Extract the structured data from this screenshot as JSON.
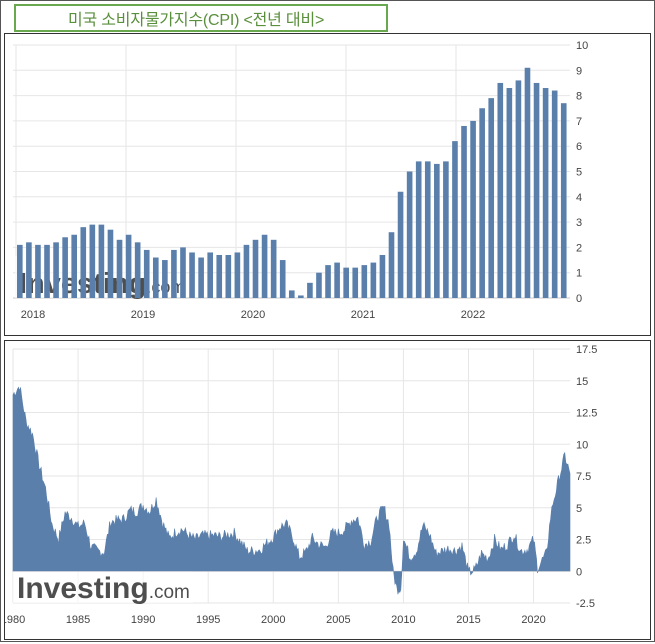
{
  "title": "미국 소비자물가지수(CPI) <전년 대비>",
  "watermark": {
    "brand": "Investing",
    "suffix": ".com"
  },
  "colors": {
    "bar": "#5b7fab",
    "grid": "#e6e6e6",
    "axis_text": "#444444",
    "title": "#5a8f3c",
    "title_border": "#6aa84f"
  },
  "chart_data": [
    {
      "type": "bar",
      "ylim": [
        0,
        10
      ],
      "y_ticks": [
        "0",
        "1",
        "2",
        "3",
        "4",
        "5",
        "6",
        "7",
        "8",
        "9",
        "10"
      ],
      "x_labels": [
        "2018",
        "2019",
        "2020",
        "2021",
        "2022"
      ],
      "grid": true,
      "series": [
        {
          "values": [
            2.1,
            2.2,
            2.1,
            2.1,
            2.2,
            2.4,
            2.5,
            2.8,
            2.9,
            2.9,
            2.7,
            2.3,
            2.5,
            2.2,
            1.9,
            1.6,
            1.5,
            1.9,
            2.0,
            1.8,
            1.6,
            1.8,
            1.7,
            1.7,
            1.8,
            2.1,
            2.3,
            2.5,
            2.3,
            1.5,
            0.3,
            0.1,
            0.6,
            1.0,
            1.3,
            1.4,
            1.2,
            1.2,
            1.3,
            1.4,
            1.7,
            2.6,
            4.2,
            5.0,
            5.4,
            5.4,
            5.3,
            5.4,
            6.2,
            6.8,
            7.0,
            7.5,
            7.9,
            8.5,
            8.3,
            8.6,
            9.1,
            8.5,
            8.3,
            8.2,
            7.7
          ]
        }
      ]
    },
    {
      "type": "area",
      "ylim": [
        -2.5,
        17.5
      ],
      "y_ticks": [
        "17.5",
        "15",
        "12.5",
        "10",
        "7.5",
        "5",
        "2.5",
        "0",
        "-2.5"
      ],
      "x_labels": [
        "1980",
        "1985",
        "1990",
        "1995",
        "2000",
        "2005",
        "2010",
        "2015",
        "2020"
      ],
      "x_range": [
        1980,
        2022.8
      ],
      "grid": true,
      "series": [
        {
          "x": [
            1980.0,
            1980.5,
            1981.0,
            1981.5,
            1982.0,
            1982.5,
            1983.0,
            1983.5,
            1984.0,
            1984.5,
            1985.0,
            1985.5,
            1986.0,
            1986.5,
            1987.0,
            1987.5,
            1988.0,
            1988.5,
            1989.0,
            1989.5,
            1990.0,
            1990.5,
            1991.0,
            1991.5,
            1992.0,
            1992.5,
            1993.0,
            1993.5,
            1994.0,
            1994.5,
            1995.0,
            1995.5,
            1996.0,
            1996.5,
            1997.0,
            1997.5,
            1998.0,
            1998.5,
            1999.0,
            1999.5,
            2000.0,
            2000.5,
            2001.0,
            2001.5,
            2002.0,
            2002.5,
            2003.0,
            2003.5,
            2004.0,
            2004.5,
            2005.0,
            2005.5,
            2006.0,
            2006.5,
            2007.0,
            2007.5,
            2008.0,
            2008.5,
            2008.9,
            2009.2,
            2009.5,
            2009.8,
            2010.0,
            2010.5,
            2011.0,
            2011.5,
            2012.0,
            2012.5,
            2013.0,
            2013.5,
            2014.0,
            2014.5,
            2015.0,
            2015.5,
            2016.0,
            2016.5,
            2017.0,
            2017.5,
            2018.0,
            2018.5,
            2019.0,
            2019.5,
            2020.0,
            2020.3,
            2020.5,
            2021.0,
            2021.3,
            2021.5,
            2022.0,
            2022.4,
            2022.8
          ],
          "y": [
            13.9,
            14.6,
            11.8,
            10.8,
            8.4,
            6.5,
            3.7,
            2.5,
            4.6,
            4.2,
            3.5,
            3.8,
            1.9,
            1.6,
            1.5,
            3.9,
            4.0,
            4.1,
            4.8,
            4.7,
            5.2,
            4.7,
            5.7,
            3.8,
            2.6,
            3.1,
            3.3,
            2.8,
            2.5,
            2.8,
            2.8,
            2.8,
            2.7,
            2.9,
            3.0,
            2.3,
            1.6,
            1.6,
            1.7,
            2.2,
            2.7,
            3.5,
            3.7,
            2.7,
            1.1,
            1.5,
            2.6,
            2.1,
            1.9,
            3.0,
            3.0,
            3.3,
            4.0,
            4.2,
            2.1,
            2.4,
            4.3,
            5.0,
            3.7,
            0.0,
            -1.4,
            -1.3,
            2.6,
            1.1,
            1.6,
            3.6,
            2.9,
            1.4,
            1.6,
            1.8,
            1.6,
            2.0,
            -0.1,
            0.1,
            1.4,
            1.0,
            2.5,
            1.7,
            2.1,
            2.9,
            1.6,
            1.7,
            2.5,
            0.3,
            0.6,
            1.4,
            4.2,
            5.4,
            7.5,
            9.1,
            7.7
          ]
        }
      ]
    }
  ]
}
